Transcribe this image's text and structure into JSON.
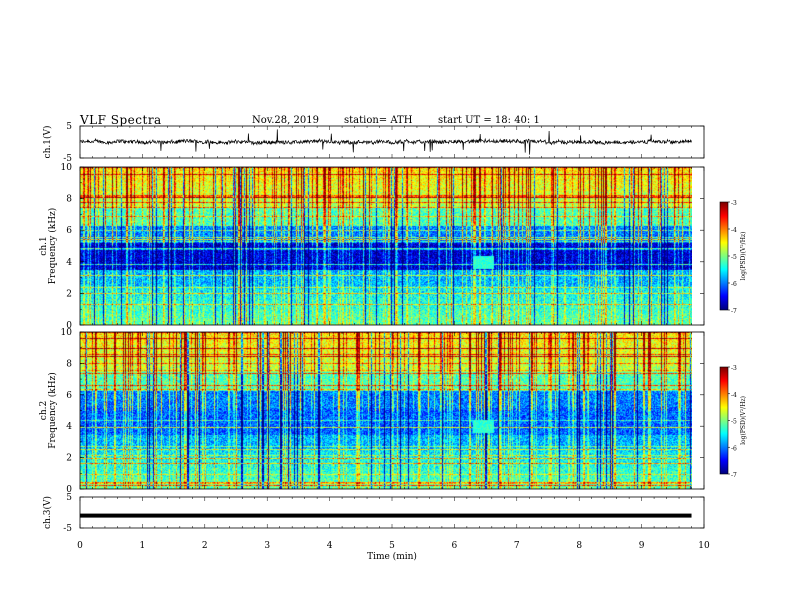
{
  "header": {
    "title": "VLF  Spectra",
    "date": "Nov.28, 2019",
    "station": "station= ATH",
    "start_ut": "start  UT  =   18: 40: 1"
  },
  "chart_data": [
    {
      "type": "line",
      "name": "ch1-waveform",
      "ylabel": "ch.1(V)",
      "ylim": [
        -5,
        5
      ],
      "yticks": [
        "5",
        "-5"
      ],
      "xlim": [
        0,
        10
      ],
      "duration_min": 9.8
    },
    {
      "type": "heatmap",
      "name": "ch1-spectrogram",
      "ylabel": "ch.1\nFrequency  (kHz)",
      "ylim": [
        0,
        10
      ],
      "yticks": [
        "0",
        "2",
        "4",
        "6",
        "8",
        "10"
      ],
      "xlim": [
        0,
        10
      ],
      "duration_min": 9.8,
      "colorbar": {
        "label": "log(PSD)(V²/Hz)",
        "range": [
          -7,
          -3
        ],
        "ticks": [
          "-3",
          "-4",
          "-5",
          "-6",
          "-7"
        ]
      }
    },
    {
      "type": "heatmap",
      "name": "ch2-spectrogram",
      "ylabel": "ch.2\nFrequency  (kHz)",
      "ylim": [
        0,
        10
      ],
      "yticks": [
        "0",
        "2",
        "4",
        "6",
        "8",
        "10"
      ],
      "xlim": [
        0,
        10
      ],
      "duration_min": 9.8,
      "colorbar": {
        "label": "log(PSD)(V²/Hz)",
        "range": [
          -7,
          -3
        ],
        "ticks": [
          "-3",
          "-4",
          "-5",
          "-6",
          "-7"
        ]
      }
    },
    {
      "type": "line",
      "name": "ch3-waveform",
      "ylabel": "ch.3(V)",
      "ylim": [
        -5,
        5
      ],
      "yticks": [
        "5",
        "-5"
      ],
      "xlim": [
        0,
        10
      ],
      "duration_min": 9.8,
      "level": -1
    }
  ],
  "xaxis": {
    "label": "Time  (min)",
    "ticks": [
      "0",
      "1",
      "2",
      "3",
      "4",
      "5",
      "6",
      "7",
      "8",
      "9",
      "10"
    ]
  },
  "colors": {
    "frame": "#000000",
    "waveform": "#000000",
    "colormap": [
      "#00007f",
      "#0000ff",
      "#007fff",
      "#00ffff",
      "#7fff7f",
      "#ffff00",
      "#ff7f00",
      "#ff0000",
      "#7f0000"
    ]
  }
}
